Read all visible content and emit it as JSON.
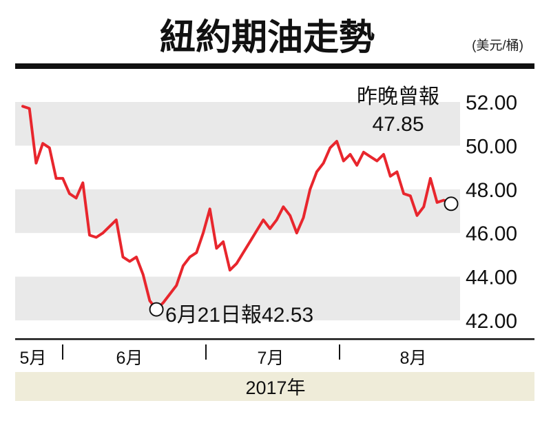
{
  "chart_data": {
    "type": "line",
    "title": "紐約期油走勢",
    "unit_label": "(美元/桶)",
    "year_label": "2017年",
    "yticks": [
      "52.00",
      "50.00",
      "48.00",
      "46.00",
      "44.00",
      "42.00"
    ],
    "ylim": [
      42,
      52
    ],
    "months": [
      "5月",
      "6月",
      "7月",
      "8月"
    ],
    "series": [
      {
        "values": [
          51.8,
          51.7,
          49.2,
          50.1,
          49.9,
          48.5,
          48.5,
          47.8,
          47.6,
          48.3,
          45.9,
          45.8,
          46.0,
          46.3,
          46.6,
          44.9,
          44.7,
          44.9,
          44.1,
          42.9,
          42.5,
          42.8,
          43.2,
          43.6,
          44.5,
          44.9,
          45.1,
          46.0,
          47.1,
          45.3,
          45.6,
          44.3,
          44.6,
          45.1,
          45.6,
          46.1,
          46.6,
          46.2,
          46.6,
          47.2,
          46.8,
          46.0,
          46.7,
          48.0,
          48.8,
          49.2,
          49.9,
          50.2,
          49.3,
          49.6,
          49.1,
          49.7,
          49.5,
          49.3,
          49.6,
          48.6,
          48.8,
          47.8,
          47.7,
          46.8,
          47.2,
          48.5,
          47.4,
          47.5,
          47.4
        ]
      }
    ],
    "annotations": {
      "last": {
        "line1": "昨晚曾報",
        "line2": "47.85"
      },
      "low": {
        "text": "6月21日報42.53"
      }
    },
    "colors": {
      "line": "#e8262d",
      "band": "#e9e9e9",
      "year_band": "#efecd9"
    }
  }
}
